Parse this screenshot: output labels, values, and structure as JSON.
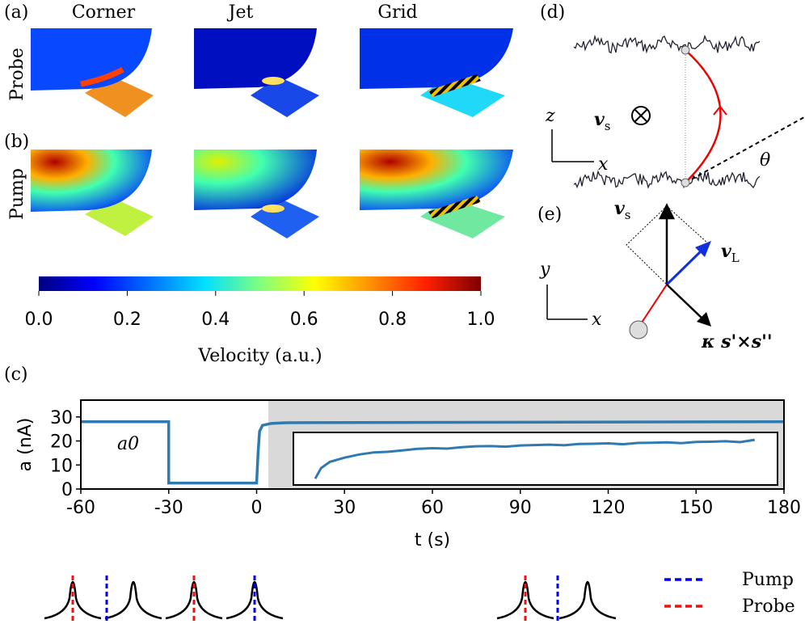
{
  "panel_labels": {
    "a": "(a)",
    "b": "(b)",
    "c": "(c)",
    "d": "(d)",
    "e": "(e)"
  },
  "heatmaps": {
    "columns": [
      "Corner",
      "Jet",
      "Grid"
    ],
    "rows": [
      "Probe",
      "Pump"
    ]
  },
  "colorbar": {
    "ticks": [
      {
        "value": 0,
        "label": "0.0"
      },
      {
        "value": 0.2,
        "label": "0.2"
      },
      {
        "value": 0.4,
        "label": "0.4"
      },
      {
        "value": 0.6,
        "label": "0.6"
      },
      {
        "value": 0.8,
        "label": "0.8"
      },
      {
        "value": 1,
        "label": "1.0"
      }
    ],
    "label": "Velocity (a.u.)"
  },
  "chart_data": {
    "type": "line",
    "xlabel": "t (s)",
    "ylabel": "a (nA)",
    "annotation": "a0",
    "xlim": [
      -60,
      180
    ],
    "ylim": [
      0,
      37
    ],
    "xticks": [
      -60,
      -30,
      0,
      30,
      60,
      90,
      120,
      150,
      180
    ],
    "yticks": [
      0,
      10,
      20,
      30
    ],
    "shade_x": [
      4,
      180
    ],
    "series": [
      {
        "color": "#2f7bb0",
        "x": [
          -60,
          -30,
          -30,
          0,
          0.5,
          1,
          2,
          5,
          10,
          180
        ],
        "values": [
          28,
          28,
          2.5,
          2.5,
          15,
          24,
          26.5,
          27.3,
          27.6,
          28
        ]
      }
    ],
    "inset": {
      "color": "#2f7bb0",
      "ylim": [
        0,
        25
      ],
      "x": [
        20,
        22,
        25,
        30,
        35,
        40,
        45,
        50,
        55,
        60,
        65,
        70,
        75,
        80,
        85,
        90,
        95,
        100,
        105,
        110,
        115,
        120,
        125,
        130,
        135,
        140,
        145,
        150,
        155,
        160,
        165,
        170
      ],
      "values": [
        3,
        8,
        11,
        13,
        14.5,
        15.5,
        15.8,
        16.5,
        17.2,
        17.5,
        17.3,
        18,
        18.4,
        18.5,
        18.2,
        18.8,
        19,
        19.2,
        18.9,
        19.5,
        19.6,
        19.8,
        19.4,
        20,
        20.1,
        20.3,
        19.9,
        20.5,
        20.6,
        20.8,
        20.4,
        21.5
      ]
    }
  },
  "panel_d": {
    "velocity": {
      "symbol": "v",
      "subscript": "s"
    },
    "z": "z",
    "x": "x",
    "theta": "θ"
  },
  "panel_e": {
    "vs": {
      "symbol": "v",
      "subscript": "s"
    },
    "vl": {
      "symbol": "v",
      "subscript": "L"
    },
    "y": "y",
    "x": "x",
    "kappa": "κ s'×s''"
  },
  "schematic_legend": [
    {
      "name": "Pump",
      "color": "#0000ee"
    },
    {
      "name": "Probe",
      "color": "#ee1111"
    }
  ]
}
